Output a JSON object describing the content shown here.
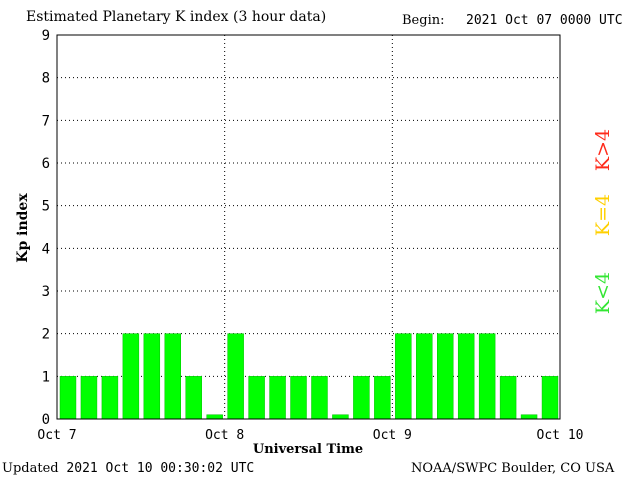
{
  "header": {
    "title": "Estimated Planetary K index (3 hour data)",
    "begin_label": "Begin:",
    "begin_value": "2021 Oct 07 0000 UTC"
  },
  "footer": {
    "updated_label": "Updated",
    "updated_value": "2021 Oct 10 00:30:02 UTC",
    "credit": "NOAA/SWPC Boulder, CO USA"
  },
  "legend": [
    {
      "label": "K>4",
      "color": "#ff2a1a"
    },
    {
      "label": "K=4",
      "color": "#ffd000"
    },
    {
      "label": "K<4",
      "color": "#33e633"
    }
  ],
  "colors": {
    "bar": "#00ff00",
    "bar_edge": "#00c000"
  },
  "chart_data": {
    "type": "bar",
    "title": "Estimated Planetary K index (3 hour data)",
    "xlabel": "Universal Time",
    "ylabel": "Kp index",
    "ylim": [
      0,
      9
    ],
    "yticks": [
      0,
      1,
      2,
      3,
      4,
      5,
      6,
      7,
      8,
      9
    ],
    "xtick_labels": [
      "Oct 7",
      "Oct 8",
      "Oct 9",
      "Oct 10"
    ],
    "grid": true,
    "interval_hours": 3,
    "values": [
      1,
      1,
      1,
      2,
      2,
      2,
      1,
      0,
      2,
      1,
      1,
      1,
      1,
      0,
      1,
      1,
      2,
      2,
      2,
      2,
      2,
      1,
      0,
      1
    ]
  }
}
